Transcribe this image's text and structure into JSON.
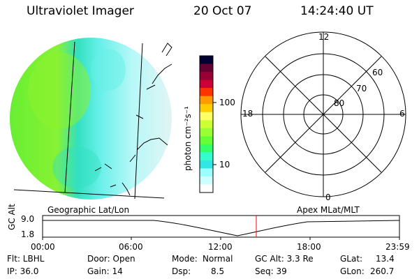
{
  "header": {
    "title": "Ultraviolet Imager",
    "date": "20 Oct 07",
    "time": "14:24:40 UT"
  },
  "colorbar": {
    "unit_label": "photon cm⁻²s⁻¹",
    "ticks": [
      "100",
      "10"
    ],
    "colors": [
      "#000033",
      "#660033",
      "#990033",
      "#cc0033",
      "#ff3300",
      "#ff9900",
      "#ffcc00",
      "#ffff66",
      "#ccff33",
      "#99ff33",
      "#66ff33",
      "#33ff66",
      "#33ffcc",
      "#33e6e6",
      "#99ffff",
      "#ccffff",
      "#ffffff"
    ]
  },
  "left_panel": {
    "label": "Geographic Lat/Lon"
  },
  "polar_plot": {
    "label": "Apex MLat/MLT",
    "mlt_labels": [
      "12",
      "18",
      "6",
      "0"
    ],
    "lat_labels": [
      "60",
      "70",
      "80"
    ]
  },
  "timeline": {
    "ylabel": "GC Alt",
    "y_ticks": [
      "9.0",
      "1.8"
    ],
    "x_ticks": [
      "00:00",
      "06:00",
      "12:00",
      "18:00",
      "23:59"
    ],
    "marker_color": "#ff0000"
  },
  "status": {
    "flt": "Flt: LBHL",
    "door": "Door: Open",
    "mode_label": "Mode:",
    "mode_value": "Normal",
    "gc_alt": "GC Alt: 3.3 Re",
    "glat_label": "GLat:",
    "glat_value": "13.4",
    "ip": "IP: 36.0",
    "gain": "Gain: 14",
    "dsp_label": "Dsp:",
    "dsp_value": "8.5",
    "seq": "Seq: 39",
    "glon_label": "GLon:",
    "glon_value": "260.7"
  }
}
